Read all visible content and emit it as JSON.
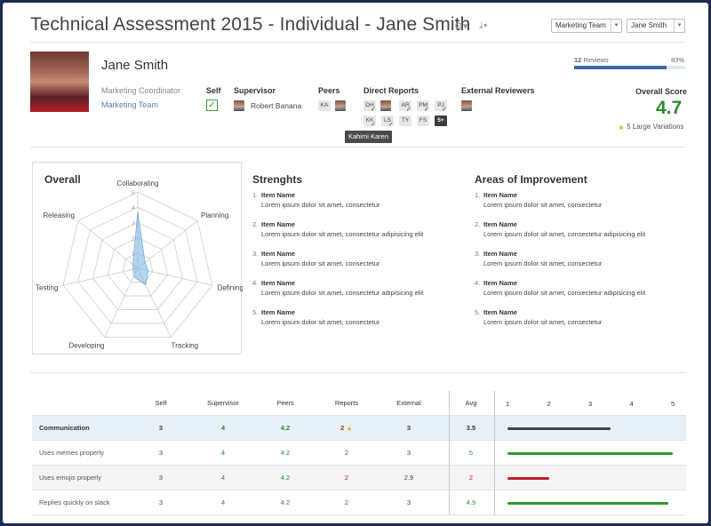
{
  "header": {
    "title": "Technical Assessment 2015 - Individual - Jane Smith",
    "team_select": "Marketing Team",
    "person_select": "Jane Smith",
    "settings_icon": "gear-icon",
    "download_icon": "download-icon"
  },
  "profile": {
    "name": "Jane Smith",
    "role": "Marketing Coordinator",
    "team": "Marketing Team"
  },
  "reviewers": {
    "self_label": "Self",
    "supervisor_label": "Supervisor",
    "supervisor_name": "Robert Banana",
    "peers_label": "Peers",
    "peers": [
      "KA"
    ],
    "direct_reports_label": "Direct Reports",
    "direct_reports_row1": [
      "DH",
      "AR",
      "PM",
      "PJ"
    ],
    "direct_reports_row2": [
      "KK",
      "LS",
      "TY",
      "FS"
    ],
    "more_badge": "5+",
    "external_label": "External Reviewers",
    "tooltip": "Kahimi Karen"
  },
  "reviews": {
    "count": "12",
    "label": "Reviews",
    "percent": "83%",
    "fraction": 0.83
  },
  "overall_score": {
    "label": "Overall Score",
    "value": "4.7",
    "variations": "5 Large Variations",
    "color": "#2e8b2e"
  },
  "radar": {
    "title": "Overall",
    "axes": [
      "Collaborating",
      "Planning",
      "Defining",
      "Tracking",
      "Developing",
      "Testing",
      "Releasing"
    ],
    "scale_labels": [
      "5",
      "4",
      "3",
      "2",
      "1"
    ],
    "values": [
      3.7,
      0.6,
      0.7,
      1.2,
      0.6,
      0.3,
      0.4
    ],
    "max": 5
  },
  "strengths": {
    "title": "Strenghts",
    "items": [
      {
        "num": "1.",
        "name": "Item Name",
        "desc": "Lorem ipsum dolor sit amet, consectetur"
      },
      {
        "num": "2.",
        "name": "Item Name",
        "desc": "Lorem ipsum dolor sit amet, consectetur adipisicing elit"
      },
      {
        "num": "3.",
        "name": "Item Name",
        "desc": "Lorem ipsum dolor sit amet, consectetur"
      },
      {
        "num": "4.",
        "name": "Item Name",
        "desc": "Lorem ipsum dolor sit amet, consectetur adipisicing elit"
      },
      {
        "num": "5.",
        "name": "Item Name",
        "desc": "Lorem ipsum dolor sit amet, consectetur"
      }
    ]
  },
  "improvement": {
    "title": "Areas of Improvement",
    "items": [
      {
        "num": "1.",
        "name": "Item Name",
        "desc": "Lorem ipsum dolor sit amet, consectetur"
      },
      {
        "num": "2.",
        "name": "Item Name",
        "desc": "Lorem ipsum dolor sit amet, consectetur adipisicing elit"
      },
      {
        "num": "3.",
        "name": "Item Name",
        "desc": "Lorem ipsum dolor sit amet, consectetur"
      },
      {
        "num": "4.",
        "name": "Item Name",
        "desc": "Lorem ipsum dolor sit amet, consectetur adipisicing elit"
      },
      {
        "num": "5.",
        "name": "Item Name",
        "desc": "Lorem ipsum dolor sit amet, consectetur"
      }
    ]
  },
  "table": {
    "columns": [
      "Self",
      "Supervisor",
      "Peers",
      "Reports",
      "External",
      "Avg"
    ],
    "scale": [
      "1",
      "2",
      "3",
      "4",
      "5"
    ],
    "rows": [
      {
        "label": "Communication",
        "self": "3",
        "supervisor": "4",
        "peers": "4.2",
        "reports": "2",
        "external": "3",
        "avg": "3.5",
        "bar": 3.5,
        "bar_color": "#444444"
      },
      {
        "label": "Uses memes properly",
        "self": "3",
        "supervisor": "4",
        "peers": "4.2",
        "reports": "2",
        "external": "3",
        "avg": "5",
        "bar": 5,
        "bar_color": "#2e9a2e"
      },
      {
        "label": "Uses emojis properly",
        "self": "3",
        "supervisor": "4",
        "peers": "4.2",
        "reports": "2",
        "external": "2.9",
        "avg": "2",
        "bar": 2,
        "bar_color": "#c0202a"
      },
      {
        "label": "Replies quickly on slack",
        "self": "3",
        "supervisor": "4",
        "peers": "4.2",
        "reports": "2",
        "external": "3",
        "avg": "4.9",
        "bar": 4.9,
        "bar_color": "#2e9a2e"
      }
    ]
  }
}
